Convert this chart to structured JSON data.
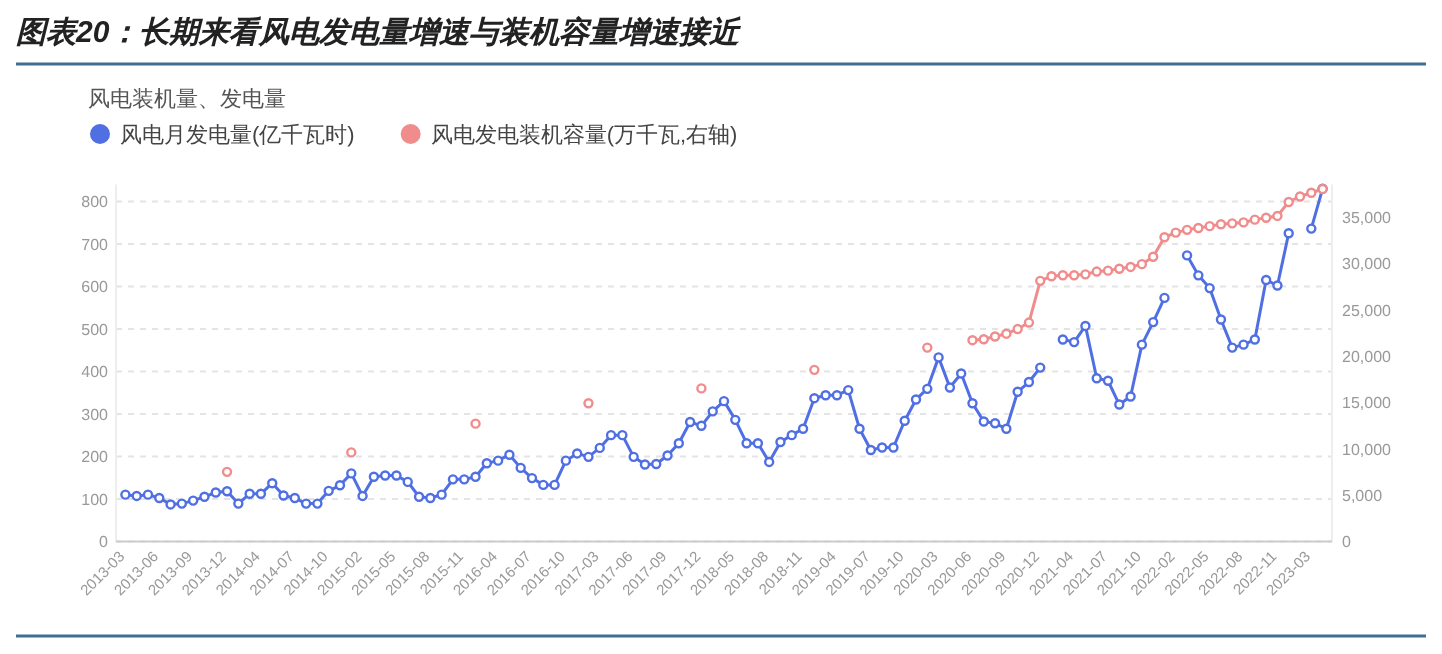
{
  "chart_data": {
    "type": "line",
    "title": "图表20：长期来看风电发电量增速与装机容量增速接近",
    "subtitle": "风电装机量、发电量",
    "categories": [
      "2013-03",
      null,
      null,
      "2013-06",
      null,
      null,
      "2013-09",
      null,
      null,
      "2013-12",
      null,
      null,
      "2014-04",
      null,
      null,
      "2014-07",
      null,
      null,
      "2014-10",
      null,
      null,
      "2015-02",
      null,
      null,
      "2015-05",
      null,
      null,
      "2015-08",
      null,
      null,
      "2015-11",
      null,
      null,
      "2016-04",
      null,
      null,
      "2016-07",
      null,
      null,
      "2016-10",
      null,
      null,
      "2017-03",
      null,
      null,
      "2017-06",
      null,
      null,
      "2017-09",
      null,
      null,
      "2017-12",
      null,
      null,
      "2018-05",
      null,
      null,
      "2018-08",
      null,
      null,
      "2018-11",
      null,
      null,
      "2019-04",
      null,
      null,
      "2019-07",
      null,
      null,
      "2019-10",
      null,
      null,
      "2020-03",
      null,
      null,
      "2020-06",
      null,
      null,
      "2020-09",
      null,
      null,
      "2020-12",
      null,
      null,
      "2021-04",
      null,
      null,
      "2021-07",
      null,
      null,
      "2021-10",
      null,
      null,
      "2022-02",
      null,
      null,
      "2022-05",
      null,
      null,
      "2022-08",
      null,
      null,
      "2022-11",
      null,
      null,
      "2023-03",
      null
    ],
    "series": [
      {
        "name": "风电月发电量(亿千瓦时)",
        "color": "#4f6fe3",
        "values": [
          110,
          107,
          110,
          102,
          87,
          89,
          96,
          105,
          115,
          118,
          89,
          112,
          112,
          137,
          108,
          102,
          89,
          89,
          119,
          132,
          160,
          107,
          152,
          155,
          155,
          140,
          105,
          102,
          110,
          146,
          146,
          152,
          184,
          190,
          204,
          173,
          149,
          133,
          133,
          190,
          207,
          199,
          220,
          250,
          250,
          199,
          181,
          182,
          202,
          231,
          281,
          272,
          306,
          330,
          286,
          231,
          231,
          187,
          234,
          250,
          265,
          337,
          344,
          344,
          356,
          265,
          215,
          221,
          221,
          284,
          334,
          359,
          433,
          362,
          395,
          325,
          282,
          278,
          265,
          352,
          375,
          409,
          null,
          475,
          469,
          507,
          384,
          378,
          322,
          341,
          463,
          516,
          573,
          null,
          673,
          626,
          596,
          522,
          456,
          463,
          475,
          615,
          602,
          725,
          null,
          736,
          830
        ]
      },
      {
        "name": "风电发电装机容量(万千瓦,右轴)",
        "color": "#f08c8c",
        "axis": "y2",
        "values": [
          null,
          null,
          null,
          null,
          null,
          null,
          null,
          null,
          null,
          7500,
          null,
          null,
          null,
          null,
          null,
          null,
          null,
          null,
          null,
          null,
          9600,
          null,
          null,
          null,
          null,
          null,
          null,
          null,
          null,
          null,
          null,
          12700,
          null,
          null,
          null,
          null,
          null,
          null,
          null,
          null,
          null,
          14900,
          null,
          null,
          null,
          null,
          null,
          null,
          null,
          null,
          null,
          16500,
          null,
          null,
          null,
          null,
          null,
          null,
          null,
          null,
          null,
          18500,
          null,
          null,
          null,
          null,
          null,
          null,
          null,
          null,
          null,
          20900,
          null,
          null,
          null,
          21700,
          21800,
          22100,
          22400,
          22900,
          23600,
          28100,
          28600,
          28700,
          28700,
          28800,
          29100,
          29200,
          29400,
          29600,
          29900,
          30700,
          32800,
          33300,
          33600,
          33800,
          34000,
          34200,
          34300,
          34400,
          34700,
          34900,
          35100,
          36600,
          37200,
          37600,
          38000
        ]
      }
    ],
    "ylim": [
      0,
      840
    ],
    "yticks": [
      0,
      100,
      200,
      300,
      400,
      500,
      600,
      700,
      800
    ],
    "y2lim": [
      0,
      38500
    ],
    "y2ticks": [
      0,
      {
        "value": 5000,
        "label": "5,000"
      },
      {
        "value": 10000,
        "label": "10,000"
      },
      {
        "value": 15000,
        "label": "15,000"
      },
      {
        "value": 20000,
        "label": "20,000"
      },
      {
        "value": 25000,
        "label": "25,000"
      },
      {
        "value": 30000,
        "label": "30,000"
      },
      {
        "value": 35000,
        "label": "35,000"
      }
    ],
    "grid": "y",
    "legend": "top left",
    "marker": "circle",
    "line_style": "solid"
  }
}
